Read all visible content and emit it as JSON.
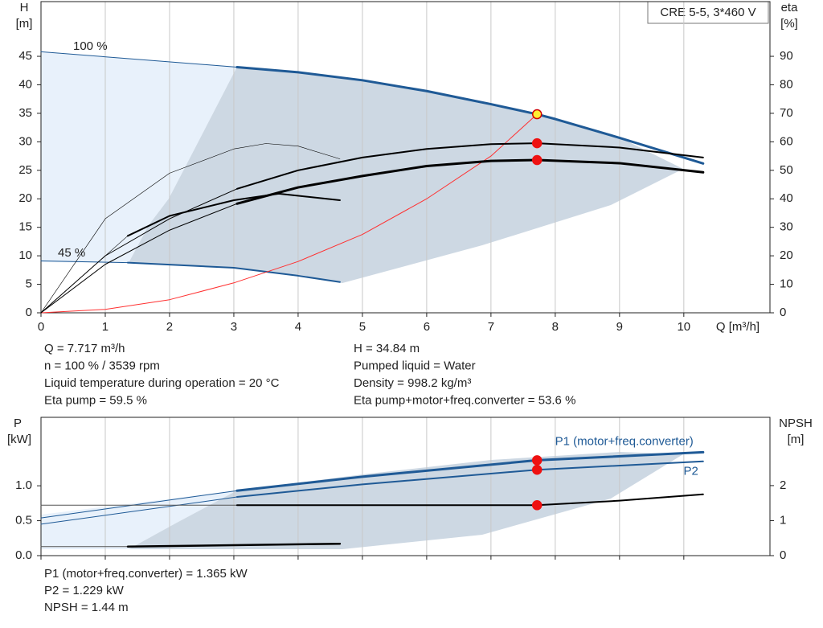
{
  "chart_data": [
    {
      "type": "line",
      "box_label": "CRE 5-5, 3*460 V",
      "ylabel": "H",
      "yunit": "[m]",
      "y2label": "eta",
      "y2unit": "[%]",
      "xlabel": "Q [m³/h]",
      "xlim": [
        0,
        11.34
      ],
      "xticks": [
        0,
        1,
        2,
        3,
        4,
        5,
        6,
        7,
        8,
        9,
        10
      ],
      "show_xtick_labels": true,
      "ylim": [
        0,
        54.6
      ],
      "yticks": [
        0,
        5,
        10,
        15,
        20,
        25,
        30,
        35,
        40,
        45
      ],
      "y2lim": [
        0,
        109.2
      ],
      "y2ticks": [
        0,
        10,
        20,
        30,
        40,
        50,
        60,
        70,
        80,
        90
      ],
      "grid": true,
      "annotations": [
        "100 %",
        "45 %"
      ],
      "series": [
        {
          "color": "#1f5a96",
          "width": 1,
          "x": [
            0,
            3.05
          ],
          "values": [
            45.8,
            43.1
          ]
        },
        {
          "color": "#1f5a96",
          "width": 3,
          "x": [
            3.05,
            4,
            5,
            6,
            7,
            7.717,
            8,
            9,
            10.3
          ],
          "values": [
            43.1,
            42.2,
            40.8,
            38.9,
            36.6,
            34.84,
            34,
            30.7,
            26.2
          ]
        },
        {
          "color": "#1f5a96",
          "width": 1,
          "x": [
            0,
            1.35
          ],
          "values": [
            9.1,
            8.8
          ]
        },
        {
          "color": "#1f5a96",
          "width": 2,
          "x": [
            1.35,
            3,
            4,
            4.65
          ],
          "values": [
            8.8,
            7.9,
            6.5,
            5.4
          ]
        },
        {
          "color": "#ff3030",
          "width": 1,
          "axis": "y2",
          "x": [
            0,
            1,
            2,
            3,
            4,
            5,
            6,
            7,
            7.717
          ],
          "values": [
            0,
            1.2,
            4.6,
            10.5,
            18,
            27.5,
            40,
            55,
            69.7
          ]
        },
        {
          "color": "#000000",
          "width": 1,
          "axis": "y2",
          "x": [
            0,
            1,
            2,
            3.05
          ],
          "values": [
            0,
            20,
            33,
            43.5
          ]
        },
        {
          "color": "#000000",
          "width": 2,
          "axis": "y2",
          "x": [
            3.05,
            4,
            5,
            6,
            7,
            7.717,
            9,
            10.3
          ],
          "values": [
            43.5,
            50,
            54.5,
            57.5,
            59.2,
            59.5,
            58,
            54.5
          ]
        },
        {
          "color": "#000000",
          "width": 1,
          "axis": "y2",
          "x": [
            0,
            1,
            2,
            3.05
          ],
          "values": [
            0,
            17,
            29,
            38.3
          ]
        },
        {
          "color": "#000000",
          "width": 3,
          "axis": "y2",
          "x": [
            3.05,
            4,
            5,
            6,
            7,
            7.717,
            9,
            10.3
          ],
          "values": [
            38.3,
            44,
            48,
            51.5,
            53.3,
            53.6,
            52.5,
            49.3
          ]
        },
        {
          "color": "#000000",
          "width": 0.6,
          "axis": "y2",
          "x": [
            0,
            1,
            2,
            3,
            3.5,
            4,
            4.65
          ],
          "values": [
            0,
            33,
            49,
            57.5,
            59.4,
            58.5,
            54
          ]
        },
        {
          "color": "#000000",
          "width": 0.6,
          "axis": "y2",
          "x": [
            0,
            1.35
          ],
          "values": [
            0,
            27
          ]
        },
        {
          "color": "#000000",
          "width": 2,
          "axis": "y2",
          "x": [
            1.35,
            2,
            3,
            3.7,
            4.65
          ],
          "values": [
            27,
            34,
            39.5,
            41.8,
            39.5
          ]
        }
      ],
      "points": [
        {
          "x": 7.717,
          "value": 34.84,
          "color": "#ffee33",
          "edge": "#d00000"
        },
        {
          "x": 7.717,
          "value": 59.5,
          "axis": "y2",
          "color": "#ee1111",
          "edge": "#ee1111"
        },
        {
          "x": 7.717,
          "value": 53.6,
          "axis": "y2",
          "color": "#ee1111",
          "edge": "#ee1111"
        }
      ]
    },
    {
      "type": "line",
      "ylabel": "P",
      "yunit": "[kW]",
      "y2label": "NPSH",
      "y2unit": "[m]",
      "xlim": [
        0,
        11.34
      ],
      "xticks": [
        0,
        1,
        2,
        3,
        4,
        5,
        6,
        7,
        8,
        9,
        10
      ],
      "show_xtick_labels": false,
      "ylim": [
        0,
        1.98
      ],
      "yticks": [
        {
          "value": 0,
          "label": "0.0"
        },
        {
          "value": 0.5,
          "label": "0.5"
        },
        {
          "value": 1,
          "label": "1.0"
        }
      ],
      "y2lim": [
        0,
        3.95
      ],
      "y2ticks": [
        0,
        1,
        2
      ],
      "grid": true,
      "series": [
        {
          "color": "#1f5a96",
          "width": 1,
          "x": [
            0,
            3.05
          ],
          "values": [
            0.54,
            0.93
          ]
        },
        {
          "name": "P1 (motor+freq.converter)",
          "color": "#1f5a96",
          "width": 3,
          "x": [
            3.05,
            5,
            7.717,
            10.3
          ],
          "values": [
            0.93,
            1.13,
            1.365,
            1.48
          ]
        },
        {
          "color": "#1f5a96",
          "width": 1,
          "x": [
            0,
            3.05
          ],
          "values": [
            0.45,
            0.84
          ]
        },
        {
          "name": "P2",
          "color": "#1f5a96",
          "width": 2,
          "x": [
            3.05,
            5,
            7.717,
            10.3
          ],
          "values": [
            0.84,
            1.02,
            1.229,
            1.35
          ]
        },
        {
          "color": "#555555",
          "width": 1,
          "axis": "y2",
          "x": [
            0,
            3.05
          ],
          "values": [
            1.44,
            1.44
          ]
        },
        {
          "color": "#000000",
          "width": 2,
          "axis": "y2",
          "x": [
            3.05,
            7.717,
            9,
            10.3
          ],
          "values": [
            1.44,
            1.44,
            1.57,
            1.75
          ]
        },
        {
          "color": "#555555",
          "width": 1,
          "x": [
            0,
            1.35
          ],
          "values": [
            0.13,
            0.13
          ]
        },
        {
          "color": "#000000",
          "width": 2.5,
          "x": [
            1.35,
            4.65
          ],
          "values": [
            0.13,
            0.17
          ]
        }
      ],
      "points": [
        {
          "x": 7.717,
          "value": 1.365,
          "color": "#ee1111",
          "edge": "#ee1111"
        },
        {
          "x": 7.717,
          "value": 1.229,
          "color": "#ee1111",
          "edge": "#ee1111"
        },
        {
          "x": 7.717,
          "value": 1.44,
          "axis": "y2",
          "color": "#ee1111",
          "edge": "#ee1111"
        }
      ]
    }
  ],
  "info_left": [
    "Q = 7.717 m³/h",
    "n = 100 % / 3539 rpm",
    "Liquid temperature during operation = 20 °C",
    "Eta pump = 59.5 %"
  ],
  "info_right": [
    "H = 34.84 m",
    "Pumped liquid = Water",
    "Density = 998.2 kg/m³",
    "Eta pump+motor+freq.converter = 53.6 %"
  ],
  "info_bottom": [
    "P1 (motor+freq.converter) = 1.365 kW",
    "P2 = 1.229 kW",
    "NPSH = 1.44 m"
  ]
}
